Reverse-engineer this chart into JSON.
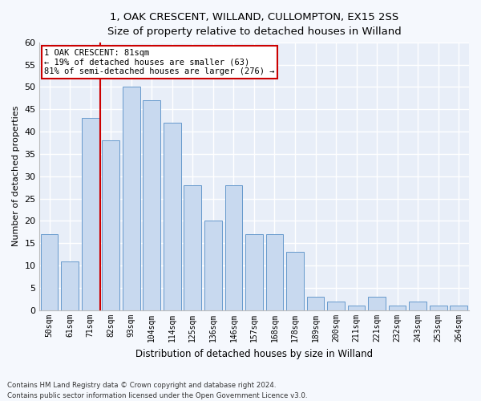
{
  "title1": "1, OAK CRESCENT, WILLAND, CULLOMPTON, EX15 2SS",
  "title2": "Size of property relative to detached houses in Willand",
  "xlabel": "Distribution of detached houses by size in Willand",
  "ylabel": "Number of detached properties",
  "categories": [
    "50sqm",
    "61sqm",
    "71sqm",
    "82sqm",
    "93sqm",
    "104sqm",
    "114sqm",
    "125sqm",
    "136sqm",
    "146sqm",
    "157sqm",
    "168sqm",
    "178sqm",
    "189sqm",
    "200sqm",
    "211sqm",
    "221sqm",
    "232sqm",
    "243sqm",
    "253sqm",
    "264sqm"
  ],
  "values": [
    17,
    11,
    43,
    38,
    50,
    47,
    42,
    28,
    20,
    28,
    17,
    17,
    13,
    3,
    2,
    1,
    3,
    1,
    2,
    1,
    1
  ],
  "bar_color": "#c8d9ef",
  "bar_edge_color": "#6699cc",
  "marker_label": "1 OAK CRESCENT: 81sqm",
  "annotation_line1": "← 19% of detached houses are smaller (63)",
  "annotation_line2": "81% of semi-detached houses are larger (276) →",
  "annotation_box_color": "#ffffff",
  "annotation_box_edge": "#cc0000",
  "marker_line_color": "#cc0000",
  "ylim": [
    0,
    60
  ],
  "yticks": [
    0,
    5,
    10,
    15,
    20,
    25,
    30,
    35,
    40,
    45,
    50,
    55,
    60
  ],
  "footnote1": "Contains HM Land Registry data © Crown copyright and database right 2024.",
  "footnote2": "Contains public sector information licensed under the Open Government Licence v3.0.",
  "fig_color": "#f5f8fd",
  "plot_bg_color": "#e8eef8"
}
